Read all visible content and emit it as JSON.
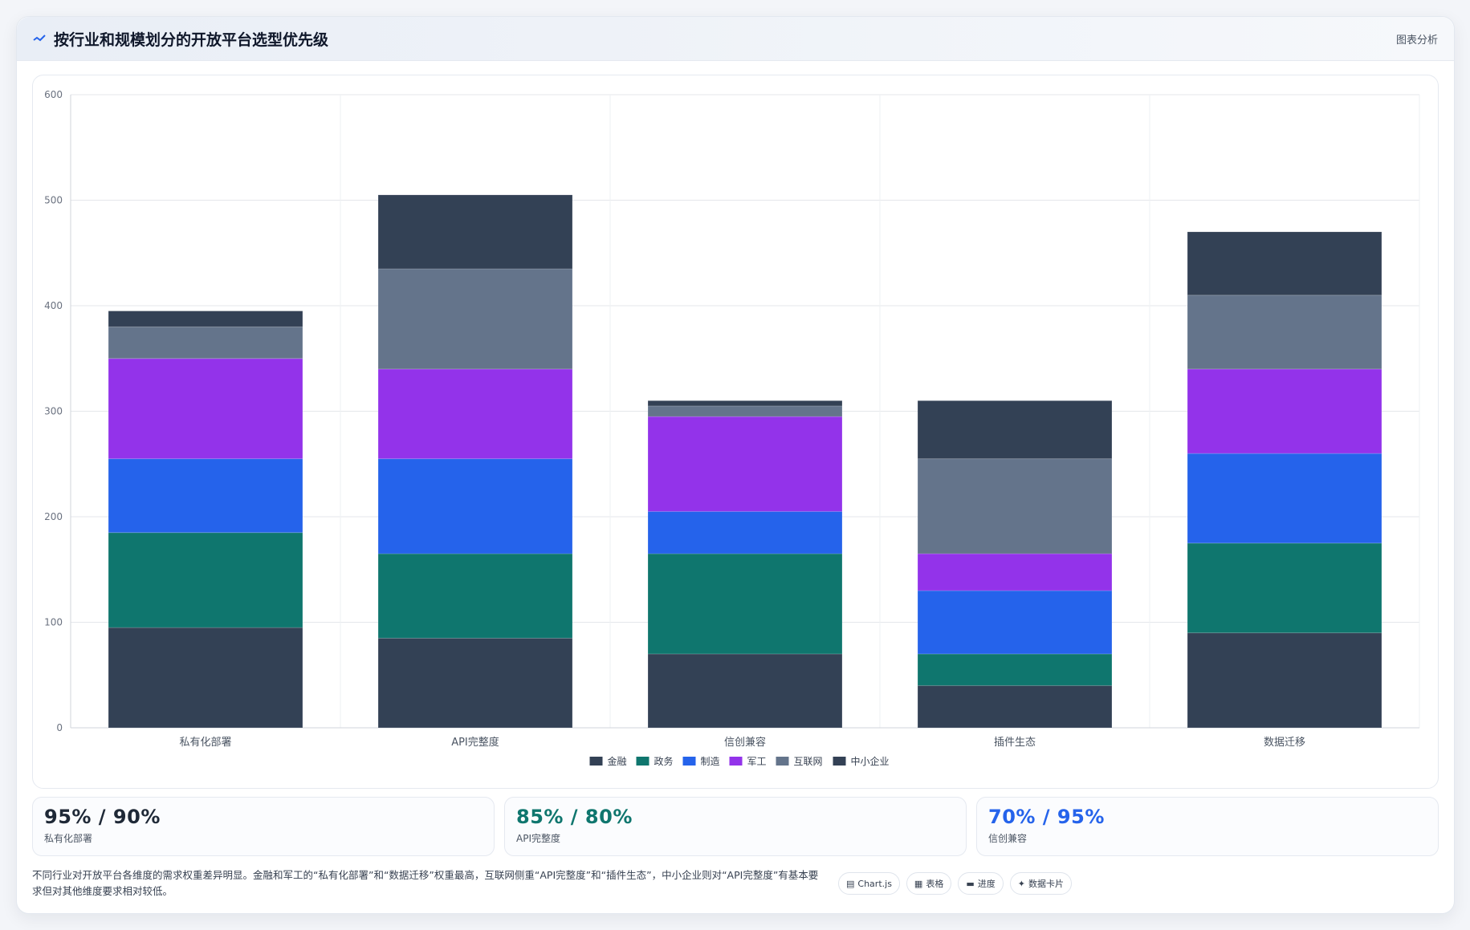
{
  "header": {
    "title": "按行业和规模划分的开放平台选型优先级",
    "icon": "trend-icon",
    "link": "图表分析"
  },
  "colors": {
    "金融": "#334155",
    "政务": "#0f766e",
    "制造": "#2563eb",
    "军工": "#9333ea",
    "互联网": "#64748b",
    "中小企业": "#334155"
  },
  "chart_data": {
    "type": "bar",
    "stacked": true,
    "title": "",
    "xlabel": "",
    "ylabel": "",
    "ylim": [
      0,
      600
    ],
    "yticks": [
      0,
      100,
      200,
      300,
      400,
      500,
      600
    ],
    "grid": true,
    "legend": "bottom",
    "categories": [
      "私有化部署",
      "API完整度",
      "信创兼容",
      "插件生态",
      "数据迁移"
    ],
    "series": [
      {
        "name": "金融",
        "color": "#334155",
        "values": [
          95,
          85,
          70,
          40,
          90
        ]
      },
      {
        "name": "政务",
        "color": "#0f766e",
        "values": [
          90,
          80,
          95,
          30,
          85
        ]
      },
      {
        "name": "制造",
        "color": "#2563eb",
        "values": [
          70,
          90,
          40,
          60,
          85
        ]
      },
      {
        "name": "军工",
        "color": "#9333ea",
        "values": [
          95,
          85,
          90,
          35,
          80
        ]
      },
      {
        "name": "互联网",
        "color": "#64748b",
        "values": [
          30,
          95,
          10,
          90,
          70
        ]
      },
      {
        "name": "中小企业",
        "color": "#334155",
        "values": [
          15,
          70,
          5,
          55,
          60
        ]
      }
    ]
  },
  "stats": [
    {
      "value": "95% / 90%",
      "label": "私有化部署",
      "color": "#1f2937"
    },
    {
      "value": "85% / 80%",
      "label": "API完整度",
      "color": "#0f766e"
    },
    {
      "value": "70% / 95%",
      "label": "信创兼容",
      "color": "#2563eb"
    }
  ],
  "footer": {
    "summary": "不同行业对开放平台各维度的需求权重差异明显。金融和军工的“私有化部署”和“数据迁移”权重最高，互联网侧重“API完整度”和“插件生态”，中小企业则对“API完整度”有基本要求但对其他维度要求相对较低。",
    "tags": [
      {
        "icon": "chart-icon",
        "glyph": "▤",
        "label": "Chart.js"
      },
      {
        "icon": "table-icon",
        "glyph": "▦",
        "label": "表格"
      },
      {
        "icon": "progress-icon",
        "glyph": "▬",
        "label": "进度"
      },
      {
        "icon": "card-icon",
        "glyph": "✦",
        "label": "数据卡片"
      }
    ]
  }
}
